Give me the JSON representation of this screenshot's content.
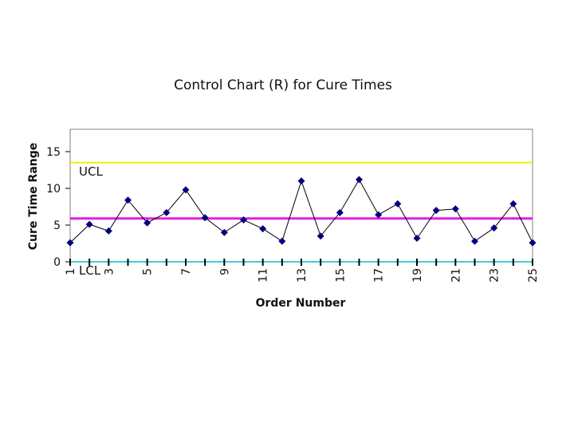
{
  "chart_data": {
    "type": "line",
    "title": "Control Chart (R) for Cure Times",
    "xlabel": "Order Number",
    "ylabel": "Cure Time Range",
    "x": [
      1,
      2,
      3,
      4,
      5,
      6,
      7,
      8,
      9,
      10,
      11,
      12,
      13,
      14,
      15,
      16,
      17,
      18,
      19,
      20,
      21,
      22,
      23,
      24,
      25
    ],
    "x_tick_labels": [
      "1",
      "3",
      "5",
      "7",
      "9",
      "11",
      "13",
      "15",
      "17",
      "19",
      "21",
      "23",
      "25"
    ],
    "y_ticks": [
      0,
      5,
      10,
      15
    ],
    "ylim": [
      0,
      18
    ],
    "xlim": [
      1,
      25
    ],
    "series": [
      {
        "values": [
          2.6,
          5.1,
          4.2,
          8.4,
          5.3,
          6.7,
          9.8,
          6.0,
          4.0,
          5.7,
          4.5,
          2.8,
          11.0,
          3.5,
          6.7,
          11.2,
          6.4,
          7.9,
          3.2,
          7.0,
          7.2,
          2.8,
          4.6,
          7.9,
          2.6
        ]
      }
    ],
    "control_limits": [
      {
        "label": "UCL",
        "value": 13.5,
        "color": "#f0f000"
      },
      {
        "label": "",
        "value": 5.9,
        "color": "#e020e0"
      },
      {
        "label": "LCL",
        "value": 0,
        "color": "#40d0d0"
      }
    ],
    "colors": {
      "line": "#000000",
      "marker": "#000080",
      "frame": "#808080"
    },
    "grid": false,
    "legend": "none"
  }
}
